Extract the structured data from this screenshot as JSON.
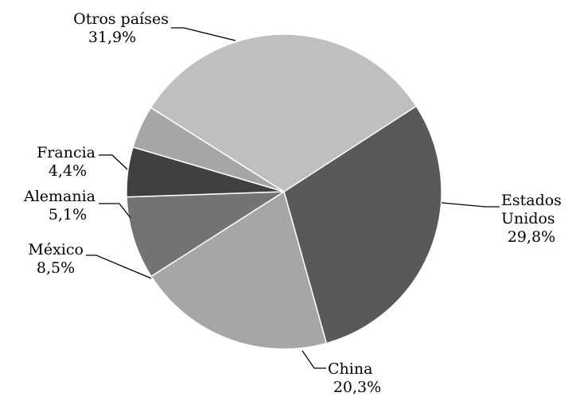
{
  "chart_data": {
    "type": "pie",
    "slices": [
      {
        "name": "Estados Unidos",
        "label_lines": [
          "Estados",
          "Unidos"
        ],
        "value": 29.8,
        "value_label": "29,8%",
        "color": "#595959"
      },
      {
        "name": "China",
        "label_lines": [
          "China"
        ],
        "value": 20.3,
        "value_label": "20,3%",
        "color": "#a6a6a6"
      },
      {
        "name": "México",
        "label_lines": [
          "México"
        ],
        "value": 8.5,
        "value_label": "8,5%",
        "color": "#737373"
      },
      {
        "name": "Alemania",
        "label_lines": [
          "Alemania"
        ],
        "value": 5.1,
        "value_label": "5,1%",
        "color": "#404040"
      },
      {
        "name": "Francia",
        "label_lines": [
          "Francia"
        ],
        "value": 4.4,
        "value_label": "4,4%",
        "color": "#a6a6a6"
      },
      {
        "name": "Otros países",
        "label_lines": [
          "Otros países"
        ],
        "value": 31.9,
        "value_label": "31,9%",
        "color": "#bfbfbf"
      }
    ],
    "start": "clockwise from 12 o'clock, after 'Otros países'",
    "legend": "none (labels with leader lines)"
  }
}
